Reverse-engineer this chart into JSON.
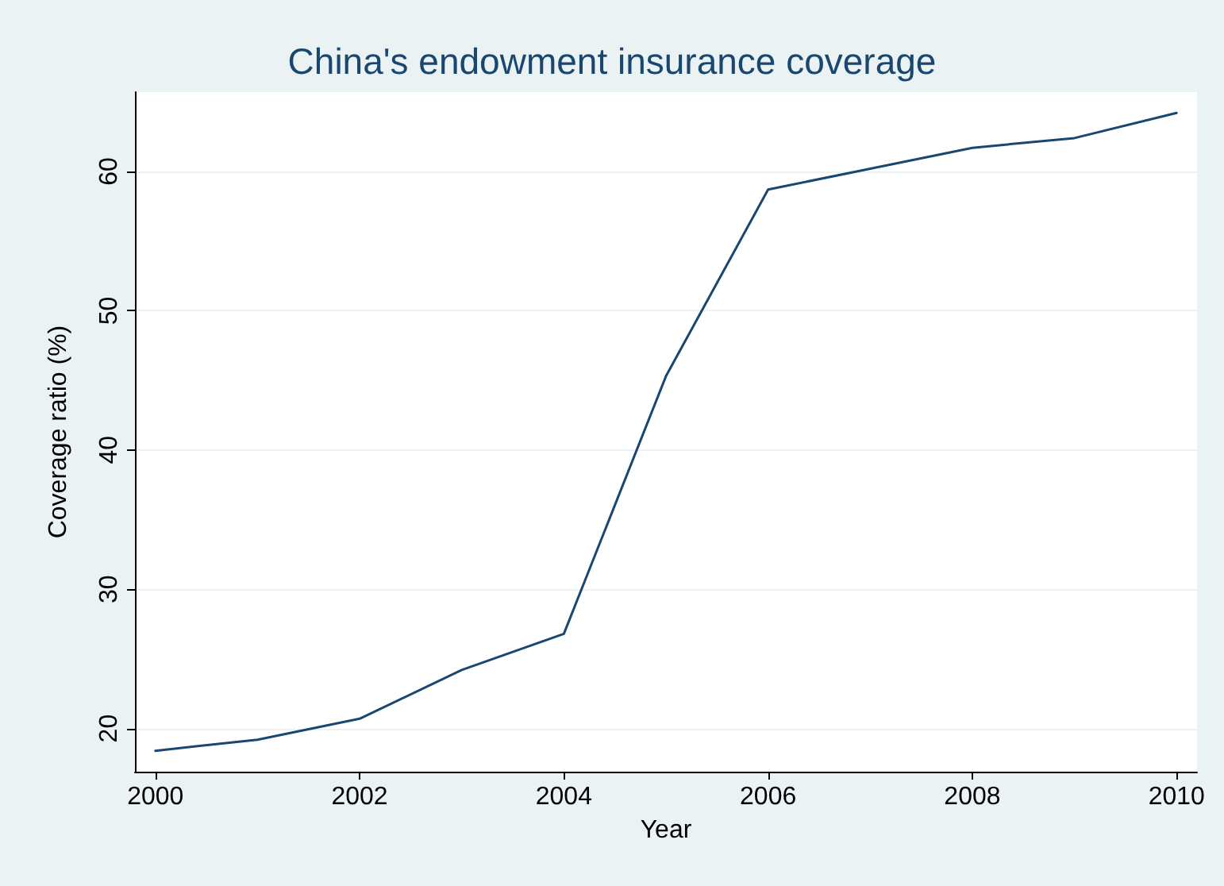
{
  "chart_data": {
    "type": "line",
    "title": "China's endowment insurance coverage",
    "xlabel": "Year",
    "ylabel": "Coverage ratio (%)",
    "x": [
      2000,
      2001,
      2002,
      2003,
      2004,
      2005,
      2006,
      2007,
      2008,
      2009,
      2010
    ],
    "series": [
      {
        "color": "#1a476f",
        "values": [
          18.4,
          19.2,
          20.7,
          24.2,
          26.8,
          45.3,
          58.7,
          60.2,
          61.7,
          62.4,
          64.2
        ]
      }
    ],
    "xlim": [
      1999.8,
      2010.2
    ],
    "xticks": [
      2000,
      2002,
      2004,
      2006,
      2008,
      2010
    ],
    "ylim": [
      16.9,
      65.7
    ],
    "yticks": [
      20,
      30,
      40,
      50,
      60
    ],
    "grid": "y",
    "marker": "none",
    "line_style": "solid"
  }
}
